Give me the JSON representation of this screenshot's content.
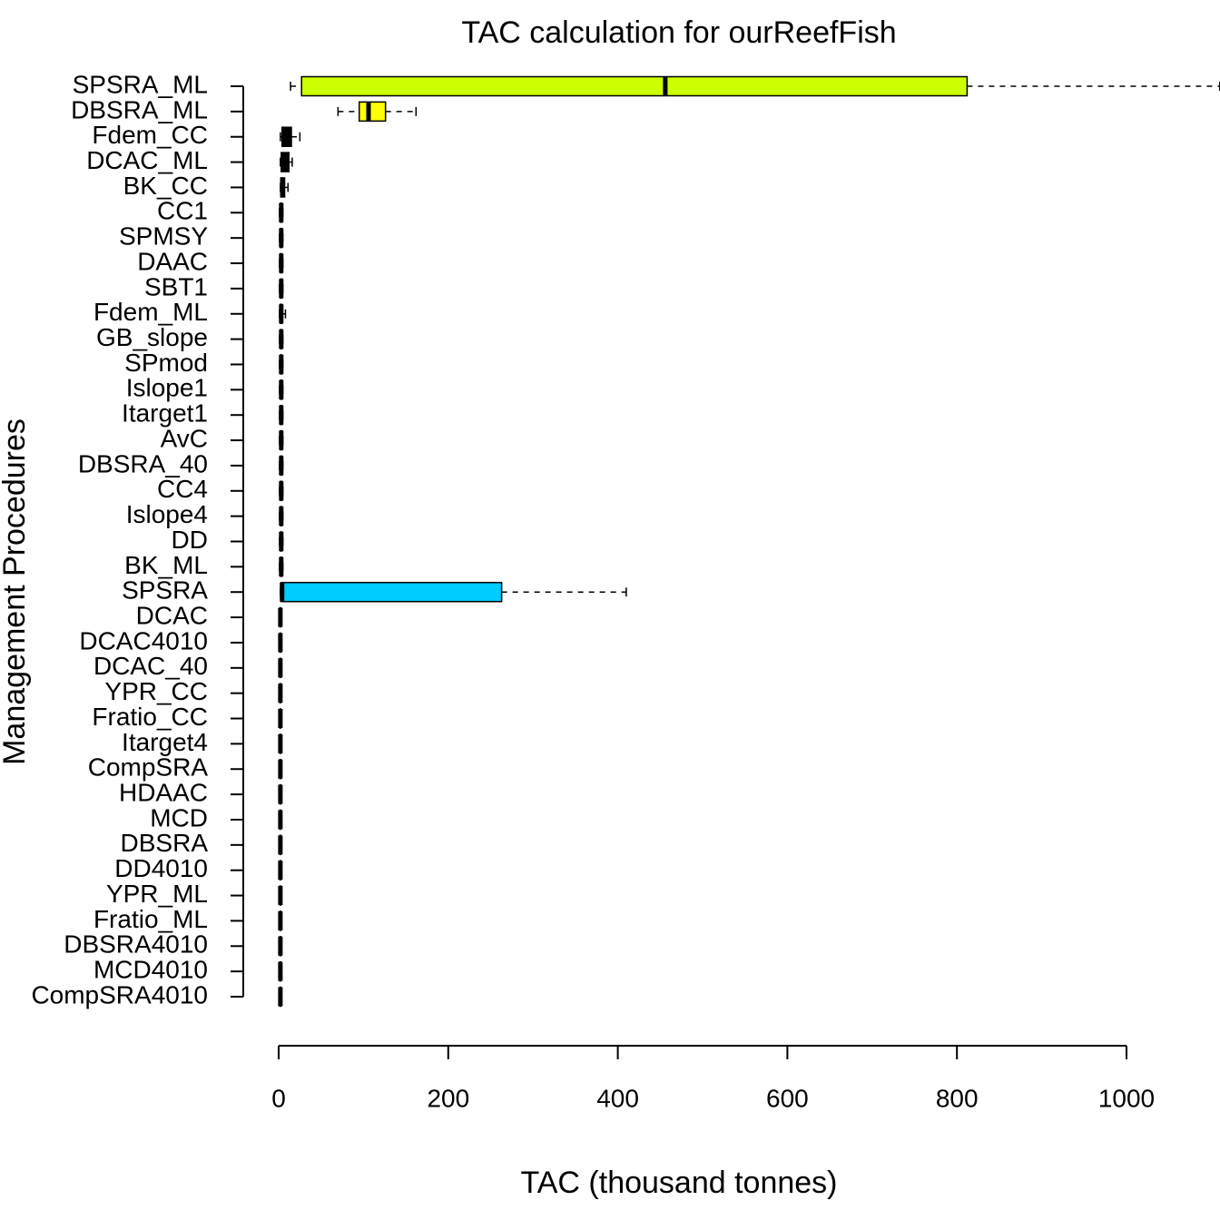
{
  "chart_data": {
    "type": "boxplot",
    "title": "TAC calculation for ourReefFish",
    "xlabel": "TAC (thousand tonnes)",
    "ylabel": "Management Procedures",
    "categories": [
      "SPSRA_ML",
      "DBSRA_ML",
      "Fdem_CC",
      "DCAC_ML",
      "BK_CC",
      "CC1",
      "SPMSY",
      "DAAC",
      "SBT1",
      "Fdem_ML",
      "GB_slope",
      "SPmod",
      "Islope1",
      "Itarget1",
      "AvC",
      "DBSRA_40",
      "CC4",
      "Islope4",
      "DD",
      "BK_ML",
      "SPSRA",
      "DCAC",
      "DCAC4010",
      "DCAC_40",
      "YPR_CC",
      "Fratio_CC",
      "Itarget4",
      "CompSRA",
      "HDAAC",
      "MCD",
      "DBSRA",
      "DD4010",
      "YPR_ML",
      "Fratio_ML",
      "DBSRA4010",
      "MCD4010",
      "CompSRA4010"
    ],
    "min": [
      14,
      70,
      2,
      2,
      2,
      1,
      1,
      1,
      1,
      1,
      1,
      1,
      1,
      1,
      1,
      1,
      1,
      1,
      1,
      1,
      2,
      1,
      1,
      1,
      1,
      1,
      1,
      1,
      1,
      1,
      1,
      1,
      1,
      1,
      1,
      1,
      1
    ],
    "q1": [
      27,
      95,
      4,
      3,
      2.5,
      2,
      2,
      2,
      2,
      2,
      2,
      2,
      2,
      2,
      2,
      2,
      2,
      2,
      2,
      2,
      3,
      1.5,
      1.5,
      1.5,
      1.5,
      1.5,
      1.5,
      1.5,
      1.5,
      1.5,
      1.5,
      1.5,
      1.5,
      1.5,
      1.5,
      1.5,
      1.5
    ],
    "median": [
      456,
      106,
      10,
      7,
      4.5,
      3,
      3,
      3,
      3,
      3,
      3,
      3,
      3,
      3,
      3,
      3,
      3,
      3,
      3,
      3,
      4,
      2,
      2,
      2,
      2,
      2,
      2,
      2,
      2,
      2,
      2,
      2,
      2,
      2,
      2,
      2,
      2
    ],
    "q3": [
      812,
      126,
      15,
      12,
      7,
      4,
      4,
      4,
      4,
      4,
      4,
      4,
      4,
      4,
      4,
      4,
      4,
      4,
      4,
      4,
      263,
      2.5,
      2.5,
      2.5,
      2.5,
      2.5,
      2.5,
      2.5,
      2.5,
      2.5,
      2.5,
      2.5,
      2.5,
      2.5,
      2.5,
      2.5,
      2.5
    ],
    "max": [
      1110,
      162,
      25,
      16,
      11,
      5,
      5,
      5,
      5,
      8,
      5,
      5,
      5,
      5,
      5,
      5,
      5,
      5,
      5,
      5,
      410,
      3,
      3,
      3,
      3,
      3,
      3,
      3,
      3,
      3,
      3,
      3,
      3,
      3,
      3,
      3,
      3
    ],
    "colors": [
      "#ccff00",
      "#ffff00",
      "#000000",
      "#000000",
      "#000000",
      "#000000",
      "#000000",
      "#000000",
      "#000000",
      "#000000",
      "#000000",
      "#000000",
      "#000000",
      "#000000",
      "#000000",
      "#000000",
      "#000000",
      "#000000",
      "#000000",
      "#000000",
      "#00ccff",
      "#000000",
      "#000000",
      "#000000",
      "#000000",
      "#000000",
      "#000000",
      "#000000",
      "#000000",
      "#000000",
      "#000000",
      "#000000",
      "#000000",
      "#000000",
      "#000000",
      "#000000",
      "#000000"
    ],
    "xlim": [
      0,
      1000
    ],
    "xticks": [
      0,
      200,
      400,
      600,
      800,
      1000
    ]
  }
}
